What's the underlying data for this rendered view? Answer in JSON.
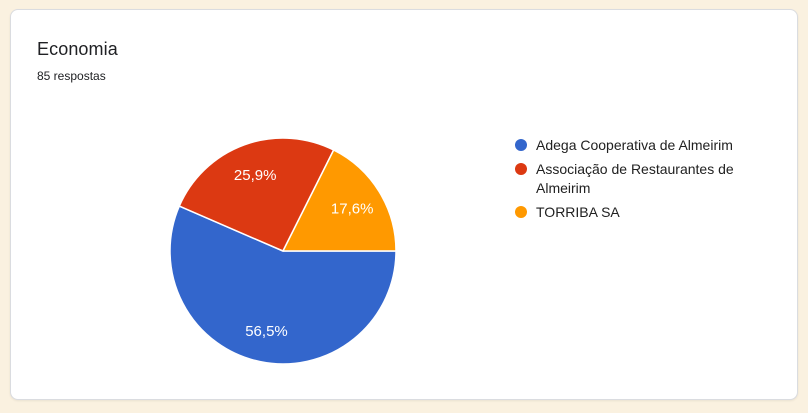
{
  "page": {
    "background_color": "#faf1e0"
  },
  "card": {
    "title": "Economia",
    "subtitle": "85 respostas",
    "background_color": "#ffffff",
    "border_color": "#dadce0"
  },
  "chart_data": {
    "type": "pie",
    "title": "Economia",
    "responses_label": "85 respostas",
    "start_angle_deg": 0,
    "direction": "clockwise",
    "legend_position": "right",
    "slice_label_color": "#ffffff",
    "slice_separator_color": "#ffffff",
    "slices": [
      {
        "label": "Adega Cooperativa de Almeirim",
        "percent": 56.5,
        "percent_label": "56,5%",
        "color": "#3366cc"
      },
      {
        "label": "Associação de Restaurantes de Almeirim",
        "percent": 25.9,
        "percent_label": "25,9%",
        "color": "#dc3912"
      },
      {
        "label": "TORRIBA SA",
        "percent": 17.6,
        "percent_label": "17,6%",
        "color": "#ff9900"
      }
    ]
  }
}
